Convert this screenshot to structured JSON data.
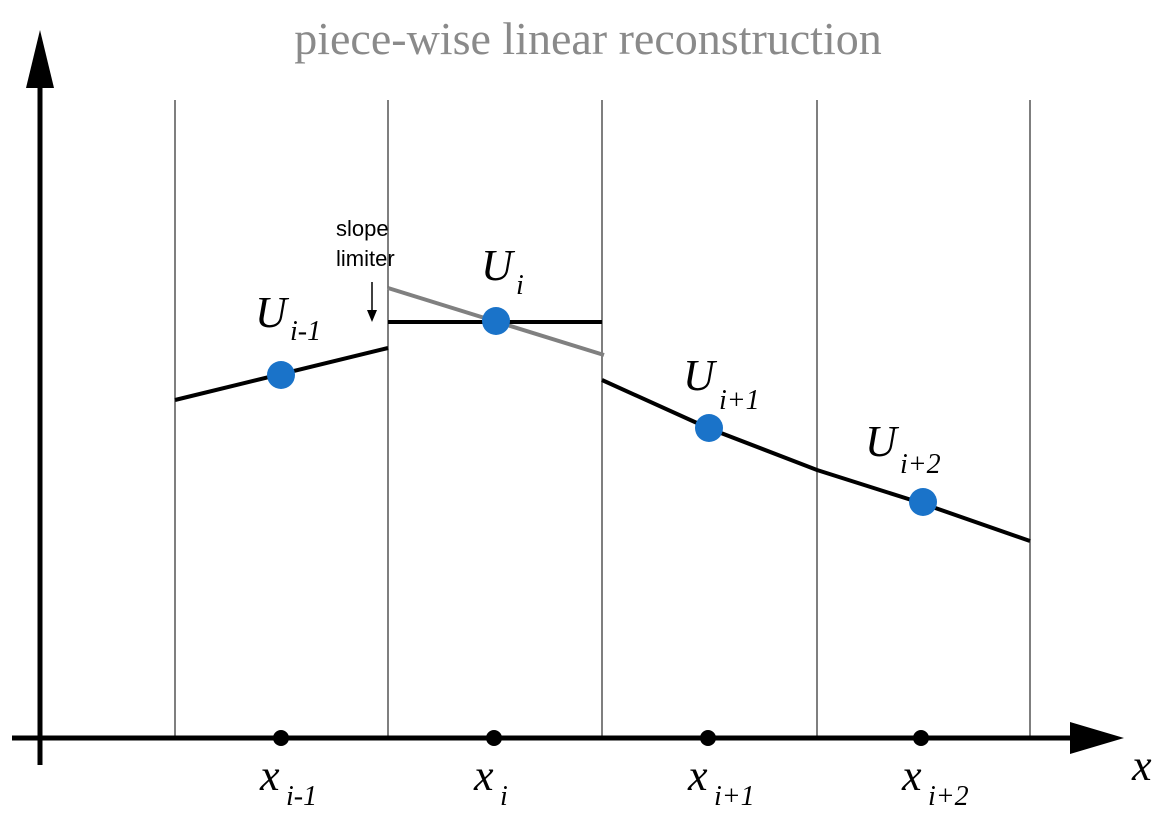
{
  "title": "piece-wise linear reconstruction",
  "annotation": {
    "line1": "slope",
    "line2": "limiter"
  },
  "x_axis_label": "x",
  "nodes": [
    {
      "x_main": "x",
      "x_sub": "i-1",
      "u_main": "U",
      "u_sub": "i-1"
    },
    {
      "x_main": "x",
      "x_sub": "i",
      "u_main": "U",
      "u_sub": "i"
    },
    {
      "x_main": "x",
      "x_sub": "i+1",
      "u_main": "U",
      "u_sub": "i+1"
    },
    {
      "x_main": "x",
      "x_sub": "i+2",
      "u_main": "U",
      "u_sub": "i+2"
    }
  ],
  "colors": {
    "point": "#1a73c9",
    "limited_slope": "#000000",
    "unlimited_slope": "#808080",
    "cell_boundary": "#555555",
    "title": "#8a8a8a"
  }
}
